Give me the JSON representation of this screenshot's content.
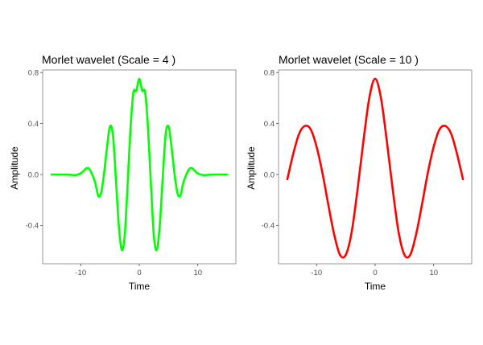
{
  "chart_data": [
    {
      "type": "line",
      "title": "Morlet wavelet (Scale = 4 )",
      "xlabel": "Time",
      "ylabel": "Amplitude",
      "xlim": [
        -16.5,
        16.5
      ],
      "ylim": [
        -0.7,
        0.82
      ],
      "xticks": [
        -10,
        0,
        10
      ],
      "xtick_labels": [
        "-10",
        "0",
        "10"
      ],
      "yticks": [
        -0.4,
        0.0,
        0.4,
        0.8
      ],
      "ytick_labels": [
        "-0.4",
        "0.0",
        "0.4",
        "0.8"
      ],
      "grid": false,
      "line_color": "#00ff00",
      "series": [
        {
          "x": [
            -15,
            -14,
            -13,
            -12,
            -11,
            -10,
            -9,
            -8.5,
            -8,
            -7.5,
            -7,
            -6.5,
            -6,
            -5.5,
            -5,
            -4.5,
            -4,
            -3.5,
            -3,
            -2.5,
            -2,
            -1.5,
            -1,
            -0.5,
            0,
            0.5,
            1,
            1.5,
            2,
            2.5,
            3,
            3.5,
            4,
            4.5,
            5,
            5.5,
            6,
            6.5,
            7,
            7.5,
            8,
            8.5,
            9,
            10,
            11,
            12,
            13,
            14,
            15
          ],
          "y": [
            0.0,
            0.0,
            0.0,
            -0.001,
            -0.005,
            0.009,
            0.049,
            0.041,
            -0.004,
            -0.068,
            -0.168,
            -0.141,
            0.014,
            0.221,
            0.378,
            0.313,
            -0.031,
            -0.398,
            -0.59,
            -0.485,
            -0.086,
            0.359,
            0.645,
            0.657,
            0.751,
            0.657,
            0.645,
            0.359,
            -0.086,
            -0.485,
            -0.59,
            -0.398,
            -0.031,
            0.313,
            0.378,
            0.221,
            0.014,
            -0.141,
            -0.168,
            -0.068,
            -0.004,
            0.041,
            0.049,
            0.009,
            -0.005,
            -0.001,
            0.0,
            0.0,
            0.0
          ]
        }
      ]
    },
    {
      "type": "line",
      "title": "Morlet wavelet (Scale = 10 )",
      "xlabel": "Time",
      "ylabel": "Amplitude",
      "xlim": [
        -16.5,
        16.5
      ],
      "ylim": [
        -0.7,
        0.82
      ],
      "xticks": [
        -10,
        0,
        10
      ],
      "xtick_labels": [
        "-10",
        "0",
        "10"
      ],
      "yticks": [
        -0.4,
        0.0,
        0.4,
        0.8
      ],
      "ytick_labels": [
        "-0.4",
        "0.0",
        "0.4",
        "0.8"
      ],
      "grid": false,
      "line_color": "#ff0000",
      "series": [
        {
          "x": [
            -15,
            -14,
            -13,
            -12,
            -11,
            -10,
            -9,
            -8,
            -7,
            -6,
            -5,
            -4,
            -3,
            -2,
            -1,
            0,
            1,
            2,
            3,
            4,
            5,
            6,
            7,
            8,
            9,
            10,
            11,
            12,
            13,
            14,
            15
          ],
          "y": [
            -0.037,
            0.16,
            0.318,
            0.381,
            0.354,
            0.218,
            0.013,
            -0.236,
            -0.469,
            -0.63,
            -0.629,
            -0.449,
            -0.115,
            0.261,
            0.599,
            0.751,
            0.599,
            0.261,
            -0.115,
            -0.449,
            -0.629,
            -0.63,
            -0.469,
            -0.236,
            0.013,
            0.218,
            0.354,
            0.381,
            0.318,
            0.16,
            -0.037
          ]
        }
      ]
    }
  ]
}
